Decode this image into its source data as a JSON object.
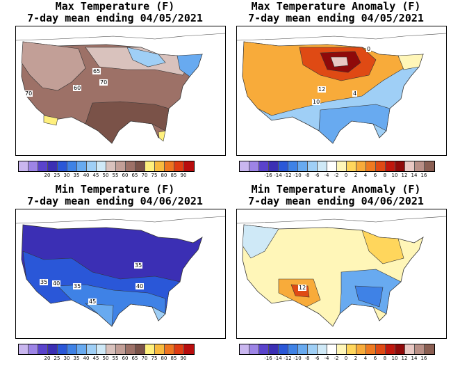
{
  "panels": [
    {
      "title_line1": "Max Temperature (F)",
      "title_line2": "7-day mean ending 04/05/2021",
      "scale": "temp",
      "labels": [
        "65",
        "70",
        "60",
        "70"
      ]
    },
    {
      "title_line1": "Max Temperature Anomaly (F)",
      "title_line2": "7-day mean ending 04/05/2021",
      "scale": "anom",
      "labels": [
        "12",
        "10",
        "4",
        "0"
      ]
    },
    {
      "title_line1": "Min Temperature (F)",
      "title_line2": "7-day mean ending 04/06/2021",
      "scale": "temp",
      "labels": [
        "35",
        "35",
        "40",
        "35",
        "40",
        "45"
      ]
    },
    {
      "title_line1": "Min Temperature Anomaly (F)",
      "title_line2": "7-day mean ending 04/06/2021",
      "scale": "anom",
      "labels": [
        "12"
      ]
    }
  ],
  "temp_scale": {
    "colors": [
      "#c9b6ef",
      "#9d84e6",
      "#5a43cc",
      "#3b2fb4",
      "#2a57d8",
      "#3f82e6",
      "#68aaf0",
      "#9fcff6",
      "#cfe9f7",
      "#d9c2bd",
      "#c29f97",
      "#9d7167",
      "#7a5248",
      "#fff07d",
      "#f8ba3f",
      "#ee7520",
      "#df3c12",
      "#b80d0d"
    ],
    "ticks": [
      "20",
      "25",
      "30",
      "35",
      "40",
      "45",
      "50",
      "55",
      "60",
      "65",
      "70",
      "75",
      "80",
      "85",
      "90"
    ]
  },
  "anom_scale": {
    "colors": [
      "#c9b6ef",
      "#9d84e6",
      "#5a43cc",
      "#3b2fb4",
      "#2a57d8",
      "#3f82e6",
      "#68aaf0",
      "#9fcff6",
      "#cfe9f7",
      "#ffffff",
      "#fff6b8",
      "#ffd65c",
      "#f8ab3a",
      "#ee7a21",
      "#df4a14",
      "#c0170d",
      "#8f0a0a",
      "#e9c8c3",
      "#b98f86",
      "#8a5e52"
    ],
    "ticks": [
      "-16",
      "-14",
      "-12",
      "-10",
      "-8",
      "-6",
      "-4",
      "-2",
      "0",
      "2",
      "4",
      "6",
      "8",
      "10",
      "12",
      "14",
      "16"
    ]
  }
}
